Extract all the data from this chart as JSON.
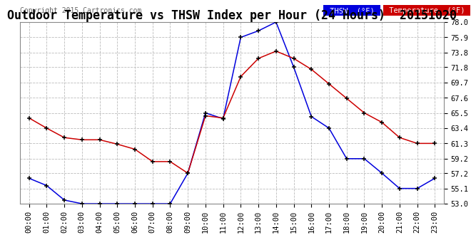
{
  "title": "Outdoor Temperature vs THSW Index per Hour (24 Hours)  20151020",
  "copyright": "Copyright 2015 Cartronics.com",
  "legend_thsw": "THSW  (°F)",
  "legend_temp": "Temperature  (°F)",
  "hours": [
    "00:00",
    "01:00",
    "02:00",
    "03:00",
    "04:00",
    "05:00",
    "06:00",
    "07:00",
    "08:00",
    "09:00",
    "10:00",
    "11:00",
    "12:00",
    "13:00",
    "14:00",
    "15:00",
    "16:00",
    "17:00",
    "18:00",
    "19:00",
    "20:00",
    "21:00",
    "22:00",
    "23:00"
  ],
  "temperature": [
    64.8,
    63.4,
    62.1,
    61.8,
    61.8,
    61.2,
    60.5,
    58.8,
    58.8,
    57.2,
    65.1,
    64.8,
    70.5,
    73.0,
    74.0,
    73.0,
    71.5,
    69.5,
    67.5,
    65.5,
    64.2,
    62.1,
    61.3,
    61.3
  ],
  "thsw": [
    56.5,
    55.5,
    53.5,
    53.0,
    53.0,
    53.0,
    53.0,
    53.0,
    53.0,
    57.2,
    65.5,
    64.7,
    75.9,
    76.8,
    78.0,
    71.8,
    65.0,
    63.4,
    59.2,
    59.2,
    57.2,
    55.1,
    55.1,
    56.5
  ],
  "ylim_min": 53.0,
  "ylim_max": 78.0,
  "yticks": [
    53.0,
    55.1,
    57.2,
    59.2,
    61.3,
    63.4,
    65.5,
    67.6,
    69.7,
    71.8,
    73.8,
    75.9,
    78.0
  ],
  "bg_color": "#ffffff",
  "grid_color": "#bbbbbb",
  "thsw_color": "#0000dd",
  "temp_color": "#cc0000",
  "marker_color": "#000000",
  "title_fontsize": 12,
  "tick_fontsize": 7.5,
  "copyright_fontsize": 7,
  "legend_thsw_bg": "#0000dd",
  "legend_temp_bg": "#cc0000",
  "legend_text_color": "#ffffff"
}
